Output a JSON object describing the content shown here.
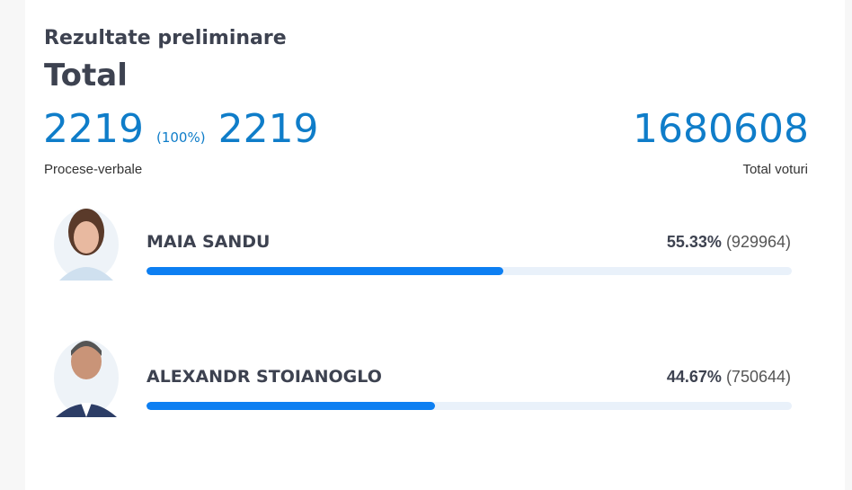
{
  "header": {
    "subtitle": "Rezultate preliminare",
    "title": "Total"
  },
  "stats": {
    "processed": 2219,
    "processed_share": "(100%)",
    "reports_total": 2219,
    "reports_label": "Procese-verbale",
    "total_votes": 1680608,
    "total_votes_label": "Total voturi"
  },
  "candidates": [
    {
      "name": "MAIA SANDU",
      "percent": 55.33,
      "percent_label": "55.33%",
      "votes": 929964,
      "votes_label": "(929964)"
    },
    {
      "name": "ALEXANDR STOIANOGLO",
      "percent": 44.67,
      "percent_label": "44.67%",
      "votes": 750644,
      "votes_label": "(750644)"
    }
  ]
}
